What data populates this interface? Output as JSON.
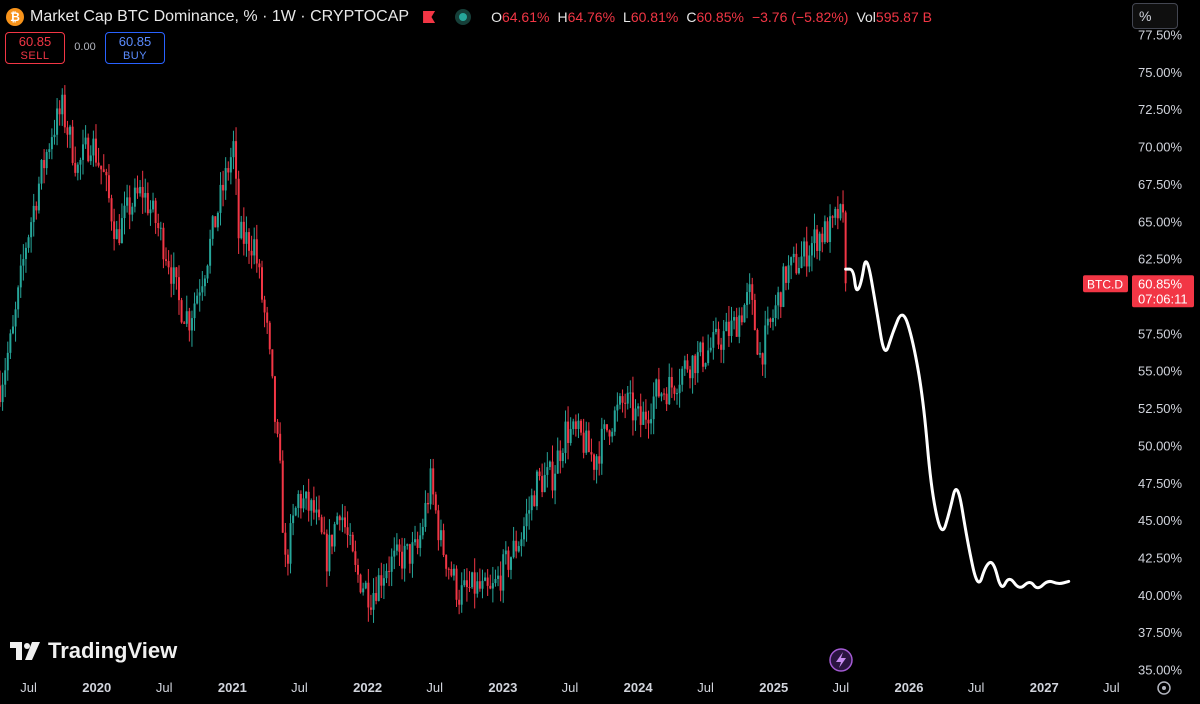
{
  "header": {
    "coin_icon": "bitcoin-icon",
    "coin_symbol": "₿",
    "title": "Market Cap BTC Dominance, % · 1W · CRYPTOCAP",
    "ohlc": {
      "o_label": "O",
      "o": "64.61%",
      "h_label": "H",
      "h": "64.76%",
      "l_label": "L",
      "l": "60.81%",
      "c_label": "C",
      "c": "60.85%",
      "change": "−3.76 (−5.82%)",
      "vol_label": "Vol",
      "vol": "595.87 B"
    }
  },
  "trade": {
    "sell_price": "60.85",
    "sell_label": "SELL",
    "spread": "0.00",
    "buy_price": "60.85",
    "buy_label": "BUY"
  },
  "scale_button": "%",
  "logo_text": "TradingView",
  "colors": {
    "up": "#26a69a",
    "down": "#f23645",
    "background": "#000000",
    "projection": "#ffffff"
  },
  "chart_data": {
    "type": "candlestick",
    "interval": "1W",
    "y_unit": "%",
    "ylim": [
      34.3,
      77.8
    ],
    "xlim": [
      "2019-04-15",
      "2027-08-15"
    ],
    "y_ticks": [
      "77.50%",
      "75.00%",
      "72.50%",
      "70.00%",
      "67.50%",
      "65.00%",
      "62.50%",
      "60.00%",
      "57.50%",
      "55.00%",
      "52.50%",
      "50.00%",
      "47.50%",
      "45.00%",
      "42.50%",
      "40.00%",
      "37.50%",
      "35.00%"
    ],
    "x_ticks": [
      {
        "label": "Jul",
        "date": "2019-07-01",
        "bold": false
      },
      {
        "label": "2020",
        "date": "2020-01-01",
        "bold": true
      },
      {
        "label": "Jul",
        "date": "2020-07-01",
        "bold": false
      },
      {
        "label": "2021",
        "date": "2021-01-01",
        "bold": true
      },
      {
        "label": "Jul",
        "date": "2021-07-01",
        "bold": false
      },
      {
        "label": "2022",
        "date": "2022-01-01",
        "bold": true
      },
      {
        "label": "Jul",
        "date": "2022-07-01",
        "bold": false
      },
      {
        "label": "2023",
        "date": "2023-01-01",
        "bold": true
      },
      {
        "label": "Jul",
        "date": "2023-07-01",
        "bold": false
      },
      {
        "label": "2024",
        "date": "2024-01-01",
        "bold": true
      },
      {
        "label": "Jul",
        "date": "2024-07-01",
        "bold": false
      },
      {
        "label": "2025",
        "date": "2025-01-01",
        "bold": true
      },
      {
        "label": "Jul",
        "date": "2025-07-01",
        "bold": false
      },
      {
        "label": "2026",
        "date": "2026-01-01",
        "bold": true
      },
      {
        "label": "Jul",
        "date": "2026-07-01",
        "bold": false
      },
      {
        "label": "2027",
        "date": "2027-01-01",
        "bold": true
      },
      {
        "label": "Jul",
        "date": "2027-07-01",
        "bold": false
      }
    ],
    "series_anchors": [
      [
        "2019-04-15",
        54.0
      ],
      [
        "2019-05-20",
        57.5
      ],
      [
        "2019-06-24",
        63.5
      ],
      [
        "2019-07-29",
        67.5
      ],
      [
        "2019-09-02",
        71.0
      ],
      [
        "2019-09-30",
        72.5
      ],
      [
        "2019-11-11",
        68.5
      ],
      [
        "2019-12-16",
        70.5
      ],
      [
        "2020-01-20",
        68.0
      ],
      [
        "2020-02-24",
        64.0
      ],
      [
        "2020-03-30",
        66.0
      ],
      [
        "2020-05-04",
        67.0
      ],
      [
        "2020-06-08",
        65.0
      ],
      [
        "2020-07-13",
        62.5
      ],
      [
        "2020-08-10",
        59.5
      ],
      [
        "2020-09-07",
        58.5
      ],
      [
        "2020-10-19",
        62.0
      ],
      [
        "2020-11-30",
        66.5
      ],
      [
        "2021-01-04",
        70.0
      ],
      [
        "2021-01-18",
        64.0
      ],
      [
        "2021-03-01",
        63.5
      ],
      [
        "2021-04-05",
        57.5
      ],
      [
        "2021-05-10",
        48.0
      ],
      [
        "2021-05-24",
        42.0
      ],
      [
        "2021-06-28",
        46.5
      ],
      [
        "2021-08-09",
        45.5
      ],
      [
        "2021-09-13",
        42.5
      ],
      [
        "2021-10-18",
        46.0
      ],
      [
        "2021-11-29",
        41.5
      ],
      [
        "2022-01-10",
        40.0
      ],
      [
        "2022-02-21",
        42.0
      ],
      [
        "2022-04-04",
        42.5
      ],
      [
        "2022-05-16",
        43.0
      ],
      [
        "2022-06-20",
        47.5
      ],
      [
        "2022-07-18",
        43.5
      ],
      [
        "2022-09-05",
        40.0
      ],
      [
        "2022-10-17",
        40.5
      ],
      [
        "2022-11-28",
        40.0
      ],
      [
        "2023-01-09",
        42.0
      ],
      [
        "2023-02-20",
        44.0
      ],
      [
        "2023-04-03",
        47.5
      ],
      [
        "2023-05-15",
        48.0
      ],
      [
        "2023-06-19",
        51.0
      ],
      [
        "2023-07-31",
        50.5
      ],
      [
        "2023-09-04",
        49.0
      ],
      [
        "2023-10-16",
        51.5
      ],
      [
        "2023-11-27",
        53.0
      ],
      [
        "2024-01-08",
        51.5
      ],
      [
        "2024-02-19",
        53.5
      ],
      [
        "2024-04-01",
        54.0
      ],
      [
        "2024-05-13",
        55.5
      ],
      [
        "2024-06-24",
        56.0
      ],
      [
        "2024-08-05",
        57.0
      ],
      [
        "2024-09-16",
        58.0
      ],
      [
        "2024-10-28",
        60.0
      ],
      [
        "2024-11-25",
        56.0
      ],
      [
        "2024-12-23",
        58.0
      ],
      [
        "2025-02-03",
        61.5
      ],
      [
        "2025-03-17",
        62.5
      ],
      [
        "2025-04-28",
        64.0
      ],
      [
        "2025-06-09",
        64.5
      ],
      [
        "2025-06-23",
        65.5
      ],
      [
        "2025-07-07",
        64.8
      ],
      [
        "2025-07-14",
        60.85
      ]
    ],
    "projection": [
      [
        "2025-07-14",
        61.8
      ],
      [
        "2025-08-04",
        61.8
      ],
      [
        "2025-08-11",
        60.2
      ],
      [
        "2025-08-25",
        60.8
      ],
      [
        "2025-09-08",
        63.0
      ],
      [
        "2025-10-06",
        59.0
      ],
      [
        "2025-10-27",
        55.8
      ],
      [
        "2025-11-17",
        57.5
      ],
      [
        "2025-12-15",
        59.2
      ],
      [
        "2026-01-12",
        57.0
      ],
      [
        "2026-02-09",
        53.0
      ],
      [
        "2026-03-02",
        47.0
      ],
      [
        "2026-03-30",
        43.8
      ],
      [
        "2026-04-20",
        45.5
      ],
      [
        "2026-05-11",
        47.8
      ],
      [
        "2026-06-08",
        43.5
      ],
      [
        "2026-07-06",
        40.3
      ],
      [
        "2026-07-27",
        42.0
      ],
      [
        "2026-08-17",
        42.3
      ],
      [
        "2026-09-07",
        40.2
      ],
      [
        "2026-09-28",
        41.3
      ],
      [
        "2026-10-26",
        40.3
      ],
      [
        "2026-11-23",
        41.0
      ],
      [
        "2026-12-14",
        40.3
      ],
      [
        "2027-01-11",
        41.0
      ],
      [
        "2027-02-08",
        40.7
      ],
      [
        "2027-03-08",
        40.9
      ]
    ],
    "last_price_label": {
      "symbol": "BTC.D",
      "value": "60.85%",
      "countdown": "07:06:11"
    },
    "grid": false,
    "legend": "top-left"
  }
}
